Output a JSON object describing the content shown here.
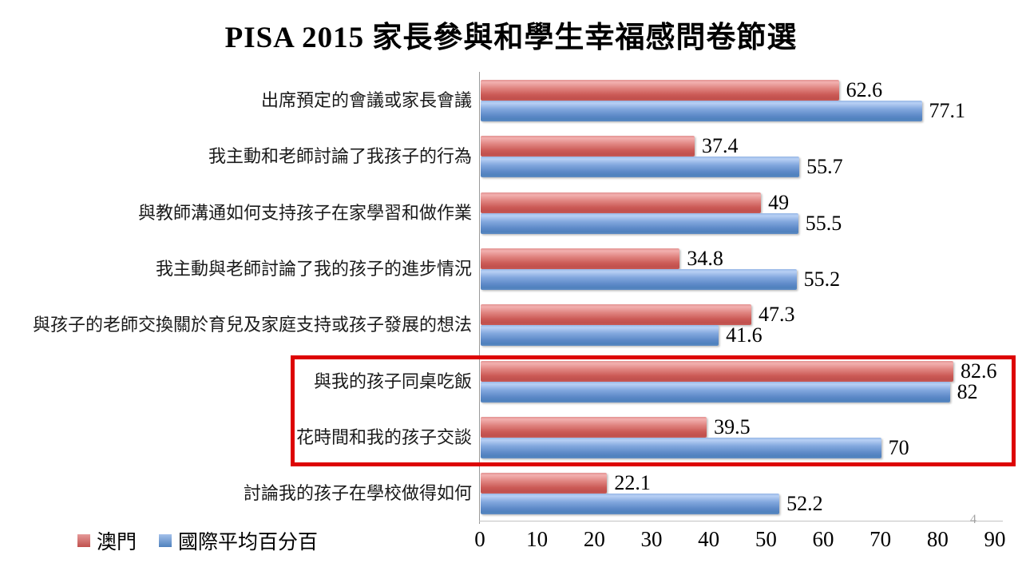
{
  "title": "PISA 2015 家長參與和學生幸福感問卷節選",
  "page_number": "4",
  "legend": {
    "items": [
      {
        "label": "澳門",
        "color": "#C0504D"
      },
      {
        "label": "國際平均百分百",
        "color": "#4F81BD"
      }
    ]
  },
  "chart_data": {
    "type": "bar",
    "orientation": "horizontal",
    "title": "PISA 2015 家長參與和學生幸福感問卷節選",
    "categories": [
      "出席預定的會議或家長會議",
      "我主動和老師討論了我孩子的行為",
      "與教師溝通如何支持孩子在家學習和做作業",
      "我主動與老師討論了我的孩子的進步情況",
      "與孩子的老師交換關於育兒及家庭支持或孩子發展的想法",
      "與我的孩子同桌吃飯",
      "花時間和我的孩子交談",
      "討論我的孩子在學校做得如何"
    ],
    "series": [
      {
        "name": "澳門",
        "color": "#C0504D",
        "values": [
          62.6,
          37.4,
          49,
          34.8,
          47.3,
          82.6,
          39.5,
          22.1
        ],
        "labels": [
          "62.6",
          "37.4",
          "49",
          "34.8",
          "47.3",
          "82.6",
          "39.5",
          "22.1"
        ]
      },
      {
        "name": "國際平均百分百",
        "color": "#4F81BD",
        "values": [
          77.1,
          55.7,
          55.5,
          55.2,
          41.6,
          82,
          70,
          52.2
        ],
        "labels": [
          "77.1",
          "55.7",
          "55.5",
          "55.2",
          "41.6",
          "82",
          "70",
          "52.2"
        ]
      }
    ],
    "xlim": [
      0,
      90
    ],
    "xticks": [
      "0",
      "10",
      "20",
      "30",
      "40",
      "50",
      "60",
      "70",
      "80",
      "90"
    ],
    "grid": false,
    "legend_position": "bottom-left",
    "highlight": {
      "categories": [
        "與我的孩子同桌吃飯",
        "花時間和我的孩子交談"
      ],
      "color": "#DD0404"
    }
  }
}
